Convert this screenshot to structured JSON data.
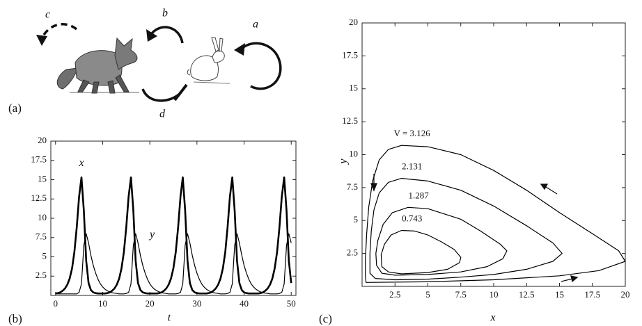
{
  "diagram": {
    "panel_label": "(a)",
    "labels": [
      "a",
      "b",
      "c",
      "d"
    ]
  },
  "chart_data": [
    {
      "type": "line",
      "panel_label": "(b)",
      "xlabel": "t",
      "x": [
        0,
        0.5,
        1,
        1.5,
        2,
        2.5,
        3,
        3.5,
        4,
        4.5,
        5,
        5.5,
        6,
        6.5,
        7,
        7.5,
        8,
        8.5,
        9,
        9.5,
        10,
        10.5,
        11,
        11.5,
        12,
        12.5,
        13,
        13.5,
        14,
        14.5,
        15,
        15.5,
        16,
        16.5,
        17,
        17.5,
        18,
        18.5,
        19,
        19.5,
        20,
        20.5,
        21,
        21.5,
        22,
        22.5,
        23,
        23.5,
        24,
        24.5,
        25,
        25.5,
        26,
        26.5,
        27,
        27.5,
        28,
        28.5,
        29,
        29.5,
        30,
        30.5,
        31,
        31.5,
        32,
        32.5,
        33,
        33.5,
        34,
        34.5,
        35,
        35.5,
        36,
        36.5,
        37,
        37.5,
        38,
        38.5,
        39,
        39.5,
        40,
        40.5,
        41,
        41.5,
        42,
        42.5,
        43,
        43.5,
        44,
        44.5,
        45,
        45.5,
        46,
        46.5,
        47,
        47.5,
        48,
        48.5,
        49,
        49.5,
        50
      ],
      "series": [
        {
          "name": "x",
          "color": "#000000",
          "values": [
            0.25,
            0.3,
            0.4,
            0.6,
            0.9,
            1.4,
            2.2,
            3.5,
            5.6,
            8.8,
            12.8,
            15.3,
            11,
            4.5,
            1.6,
            0.7,
            0.4,
            0.3,
            0.25,
            0.25,
            0.25,
            0.25,
            0.3,
            0.4,
            0.6,
            0.9,
            1.4,
            2.2,
            3.5,
            5.6,
            8.8,
            12.8,
            15.3,
            11,
            4.5,
            1.6,
            0.7,
            0.4,
            0.3,
            0.25,
            0.25,
            0.25,
            0.25,
            0.25,
            0.3,
            0.4,
            0.6,
            0.9,
            1.4,
            2.2,
            3.5,
            5.6,
            8.8,
            12.8,
            15.3,
            11,
            4.5,
            1.6,
            0.7,
            0.4,
            0.3,
            0.25,
            0.25,
            0.25,
            0.25,
            0.3,
            0.4,
            0.6,
            0.9,
            1.4,
            2.2,
            3.5,
            5.6,
            8.8,
            12.8,
            15.3,
            11,
            4.5,
            1.6,
            0.7,
            0.4,
            0.3,
            0.25,
            0.25,
            0.25,
            0.25,
            0.25,
            0.3,
            0.4,
            0.6,
            0.9,
            1.4,
            2.2,
            3.5,
            5.6,
            8.8,
            12.8,
            15.3,
            11,
            4.5,
            1.6
          ]
        },
        {
          "name": "y",
          "color": "#000000",
          "values": [
            0.2,
            0.2,
            0.2,
            0.2,
            0.2,
            0.2,
            0.2,
            0.2,
            0.2,
            0.2,
            0.4,
            1.5,
            6.5,
            8.0,
            6.8,
            5.2,
            3.9,
            2.9,
            2.1,
            1.5,
            1.1,
            0.8,
            0.6,
            0.45,
            0.35,
            0.3,
            0.25,
            0.2,
            0.2,
            0.2,
            0.25,
            0.4,
            1.5,
            6.5,
            8.0,
            6.8,
            5.2,
            3.9,
            2.9,
            2.1,
            1.5,
            1.1,
            0.8,
            0.6,
            0.45,
            0.35,
            0.3,
            0.25,
            0.2,
            0.2,
            0.2,
            0.2,
            0.25,
            0.4,
            1.5,
            6.5,
            8.0,
            6.8,
            5.2,
            3.9,
            2.9,
            2.1,
            1.5,
            1.1,
            0.8,
            0.6,
            0.45,
            0.35,
            0.3,
            0.25,
            0.2,
            0.2,
            0.2,
            0.25,
            0.4,
            1.5,
            6.5,
            8.0,
            6.8,
            5.2,
            3.9,
            2.9,
            2.1,
            1.5,
            1.1,
            0.8,
            0.6,
            0.45,
            0.35,
            0.3,
            0.25,
            0.2,
            0.2,
            0.2,
            0.2,
            0.25,
            0.4,
            1.5,
            6.5,
            8.0,
            6.8
          ]
        }
      ],
      "xlim": [
        -1,
        51
      ],
      "xticks": [
        0,
        10,
        20,
        30,
        40,
        50
      ],
      "ylim": [
        0,
        20
      ],
      "yticks": [
        2.5,
        5,
        7.5,
        10,
        12.5,
        15,
        17.5,
        20
      ]
    },
    {
      "type": "phase",
      "panel_label": "(c)",
      "xlabel": "x",
      "ylabel": "y",
      "series": [
        {
          "name": "V = 3.126",
          "color": "#000000",
          "x": [
            0.3,
            5,
            10,
            15,
            18,
            20,
            19.5,
            17.5,
            15,
            12.5,
            10,
            7.5,
            5,
            3,
            2,
            1.3,
            0.8,
            0.5,
            0.35,
            0.25,
            0.25
          ],
          "values": [
            0.3,
            0.35,
            0.5,
            0.8,
            1.2,
            1.9,
            2.7,
            4,
            5.6,
            7.3,
            8.8,
            10,
            10.6,
            10.7,
            10.4,
            9.6,
            8,
            6,
            4,
            2,
            0.8
          ]
        },
        {
          "name": "2.131",
          "color": "#000000",
          "x": [
            0.6,
            1,
            2.5,
            5,
            7.5,
            10,
            12.5,
            14.5,
            15.2,
            14.5,
            12.5,
            10,
            7.5,
            5,
            3,
            2,
            1.3,
            0.9,
            0.7,
            0.6
          ],
          "values": [
            1.0,
            0.6,
            0.5,
            0.55,
            0.7,
            0.9,
            1.3,
            1.9,
            2.5,
            3.3,
            4.6,
            6.1,
            7.3,
            8.0,
            8.2,
            7.9,
            7.1,
            5.8,
            4.2,
            2.5
          ]
        },
        {
          "name": "1.287",
          "color": "#000000",
          "x": [
            1.1,
            1.5,
            2.5,
            5,
            7.5,
            9.5,
            10.7,
            11,
            10.5,
            9,
            7.5,
            5,
            3.5,
            2.3,
            1.6,
            1.2,
            1.05
          ],
          "values": [
            1.6,
            1.0,
            0.85,
            0.9,
            1.1,
            1.5,
            2.1,
            2.7,
            3.2,
            4.2,
            5.1,
            5.9,
            6.0,
            5.6,
            4.7,
            3.5,
            2.5
          ]
        },
        {
          "name": "0.743",
          "color": "#000000",
          "x": [
            1.5,
            2,
            3,
            5,
            6.5,
            7.4,
            7.5,
            7,
            6,
            5,
            4,
            3,
            2.2,
            1.7,
            1.45
          ],
          "values": [
            1.5,
            1.1,
            0.95,
            1.05,
            1.3,
            1.8,
            2.2,
            2.8,
            3.4,
            3.9,
            4.2,
            4.25,
            3.9,
            3.2,
            2.4
          ]
        }
      ],
      "xlim": [
        0,
        20
      ],
      "xticks": [
        2.5,
        5,
        7.5,
        10,
        12.5,
        15,
        17.5,
        20
      ],
      "ylim": [
        0,
        20
      ],
      "yticks": [
        2.5,
        5,
        7.5,
        10,
        12.5,
        15,
        17.5,
        20
      ]
    }
  ]
}
